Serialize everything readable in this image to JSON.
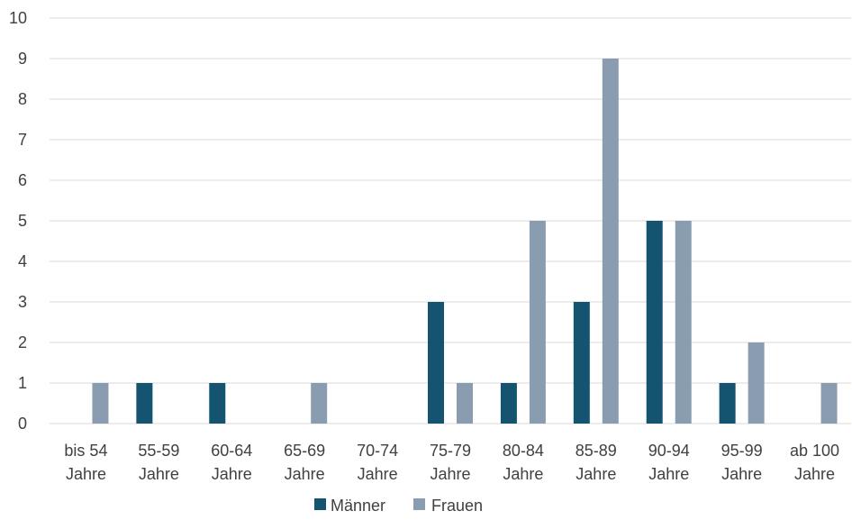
{
  "chart_data": {
    "type": "bar",
    "categories": [
      [
        "bis 54",
        "Jahre"
      ],
      [
        "55-59",
        "Jahre"
      ],
      [
        "60-64",
        "Jahre"
      ],
      [
        "65-69",
        "Jahre"
      ],
      [
        "70-74",
        "Jahre"
      ],
      [
        "75-79",
        "Jahre"
      ],
      [
        "80-84",
        "Jahre"
      ],
      [
        "85-89",
        "Jahre"
      ],
      [
        "90-94",
        "Jahre"
      ],
      [
        "95-99",
        "Jahre"
      ],
      [
        "ab 100",
        "Jahre"
      ]
    ],
    "series": [
      {
        "name": "Männer",
        "color": "#145470",
        "values": [
          0,
          1,
          1,
          0,
          0,
          3,
          1,
          3,
          5,
          1,
          0
        ]
      },
      {
        "name": "Frauen",
        "color": "#8a9db0",
        "values": [
          1,
          0,
          0,
          1,
          0,
          1,
          5,
          9,
          5,
          2,
          1
        ]
      }
    ],
    "ylim": [
      0,
      10
    ],
    "yticks": [
      0,
      1,
      2,
      3,
      4,
      5,
      6,
      7,
      8,
      9,
      10
    ],
    "grid": true,
    "legend_position": "bottom-center",
    "title": "",
    "xlabel": "",
    "ylabel": ""
  },
  "colors": {
    "gridline": "#d9d9d9",
    "axis_text": "#404040"
  }
}
